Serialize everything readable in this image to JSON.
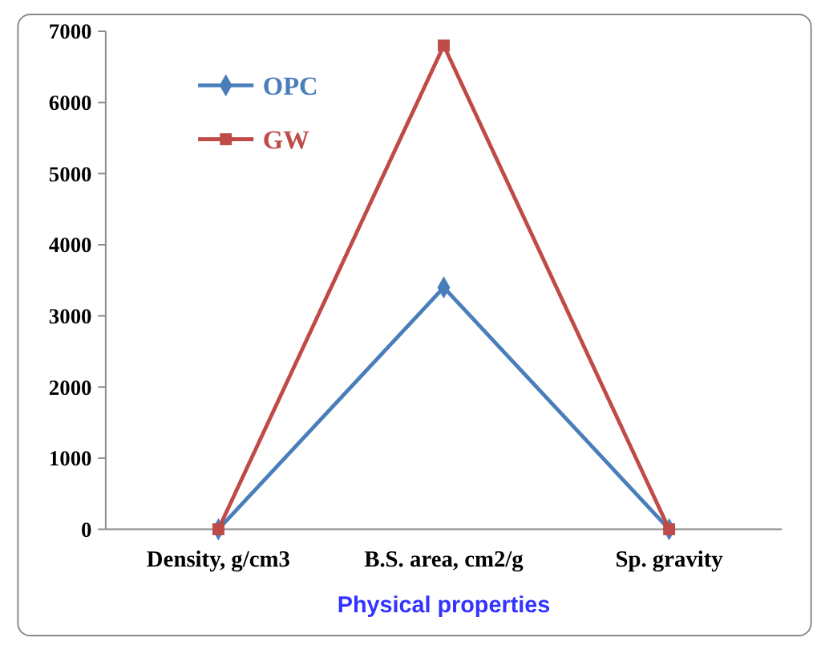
{
  "chart_data": {
    "type": "line",
    "xlabel": "Physical properties",
    "categories": [
      "Density, g/cm3",
      "B.S. area, cm2/g",
      "Sp.  gravity"
    ],
    "series": [
      {
        "name": "OPC",
        "color": "#4a7ebb",
        "values": [
          0,
          3400,
          0
        ],
        "marker": "diamond"
      },
      {
        "name": "GW",
        "color": "#be4b48",
        "values": [
          0,
          6800,
          0
        ],
        "marker": "square"
      }
    ],
    "ylim": [
      0,
      7000
    ],
    "yticks": [
      0,
      1000,
      2000,
      3000,
      4000,
      5000,
      6000,
      7000
    ],
    "grid": false,
    "legend": "top left",
    "line_style": "solid"
  }
}
